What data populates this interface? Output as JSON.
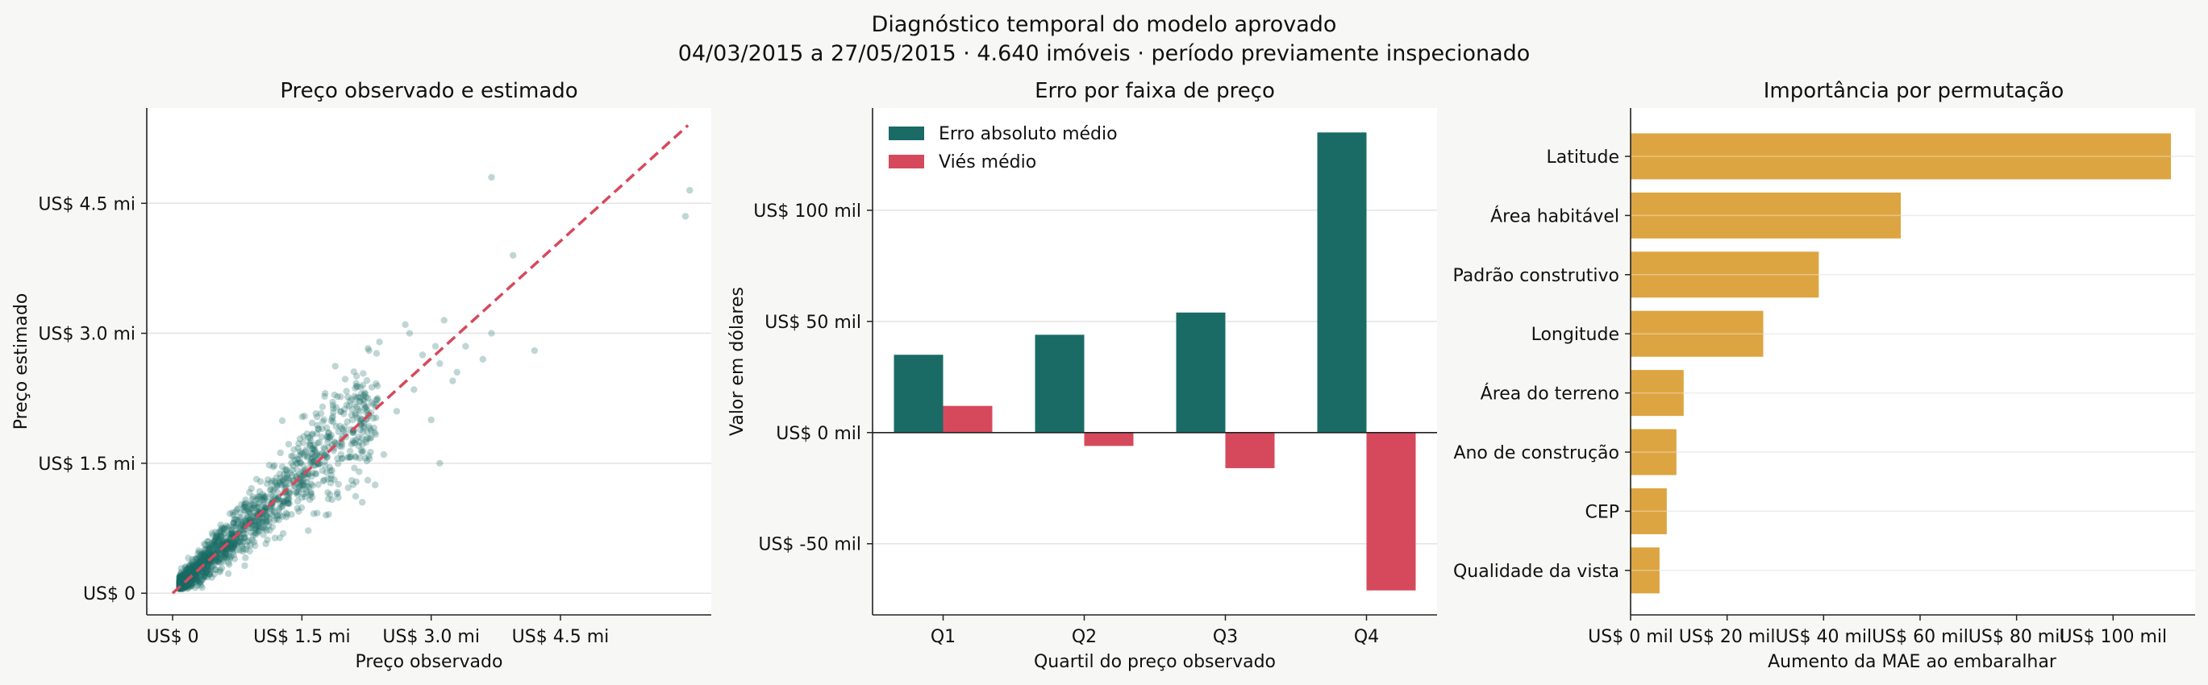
{
  "figure": {
    "title_line1": "Diagnóstico temporal do modelo aprovado",
    "title_line2": "04/03/2015 a 27/05/2015 · 4.640 imóveis · período previamente inspecionado"
  },
  "colors": {
    "teal": "#1a6b66",
    "red": "#d6495c",
    "gold": "#dca542",
    "background": "#f7f7f5",
    "grid": "#e3e3e3"
  },
  "chart_data": [
    {
      "type": "scatter",
      "title": "Preço observado e estimado",
      "xlabel": "Preço observado",
      "ylabel": "Preço estimado",
      "xlim": [
        -0.3,
        6.25
      ],
      "ylim": [
        -0.25,
        5.6
      ],
      "xticks": [
        0,
        1.5,
        3.0,
        4.5
      ],
      "xtick_labels": [
        "US$ 0",
        "US$ 1.5 mi",
        "US$ 3.0 mi",
        "US$ 4.5 mi"
      ],
      "yticks": [
        0,
        1.5,
        3.0,
        4.5
      ],
      "ytick_labels": [
        "US$ 0",
        "US$ 1.5 mi",
        "US$ 3.0 mi",
        "US$ 4.5 mi"
      ],
      "unit": "US$ mi",
      "reference_line": {
        "style": "dashed",
        "from": [
          0,
          0
        ],
        "to": [
          5.98,
          5.4
        ],
        "color": "red"
      },
      "point_color": "teal",
      "grid": "y",
      "outliers": [
        [
          3.05,
          2.85
        ],
        [
          4.2,
          2.8
        ],
        [
          3.4,
          2.85
        ],
        [
          3.7,
          3.0
        ],
        [
          3.15,
          3.15
        ],
        [
          3.25,
          2.45
        ],
        [
          3.1,
          2.65
        ],
        [
          2.7,
          3.1
        ],
        [
          3.95,
          3.9
        ],
        [
          3.7,
          4.8
        ],
        [
          6.0,
          4.65
        ],
        [
          5.95,
          4.35
        ],
        [
          3.6,
          2.7
        ],
        [
          3.3,
          2.55
        ],
        [
          2.4,
          2.9
        ],
        [
          2.9,
          2.75
        ],
        [
          2.75,
          3.0
        ],
        [
          2.6,
          2.1
        ],
        [
          2.45,
          1.6
        ],
        [
          2.2,
          1.05
        ],
        [
          3.1,
          1.5
        ],
        [
          2.8,
          2.35
        ],
        [
          3.0,
          2.0
        ],
        [
          2.35,
          1.25
        ]
      ]
    },
    {
      "type": "bar",
      "title": "Erro por faixa de preço",
      "xlabel": "Quartil do preço observado",
      "ylabel": "Valor em dólares",
      "categories": [
        "Q1",
        "Q2",
        "Q3",
        "Q4"
      ],
      "series": [
        {
          "name": "Erro absoluto médio",
          "color": "teal",
          "values": [
            35,
            44,
            54,
            135
          ]
        },
        {
          "name": "Viés médio",
          "color": "red",
          "values": [
            12,
            -6,
            -16,
            -71
          ]
        }
      ],
      "unit": "US$ mil",
      "ylim": [
        -82,
        146
      ],
      "yticks": [
        -50,
        0,
        50,
        100
      ],
      "ytick_labels": [
        "US$ -50 mil",
        "US$ 0 mil",
        "US$ 50 mil",
        "US$ 100 mil"
      ],
      "legend": "top-left",
      "grid": "y"
    },
    {
      "type": "bar",
      "orientation": "horizontal",
      "title": "Importância por permutação",
      "xlabel": "Aumento da MAE ao embaralhar",
      "categories": [
        "Latitude",
        "Área habitável",
        "Padrão construtivo",
        "Longitude",
        "Área do terreno",
        "Ano de construção",
        "CEP",
        "Qualidade da vista"
      ],
      "values": [
        112,
        56,
        39,
        27.5,
        11,
        9.5,
        7.5,
        6
      ],
      "unit": "US$ mil",
      "color": "gold",
      "xlim": [
        0,
        117
      ],
      "xticks": [
        0,
        20,
        40,
        60,
        80,
        100
      ],
      "xtick_labels": [
        "US$ 0 mil",
        "US$ 20 mil",
        "US$ 40 mil",
        "US$ 60 mil",
        "US$ 80 mil",
        "US$ 100 mil"
      ],
      "grid": "y"
    }
  ]
}
